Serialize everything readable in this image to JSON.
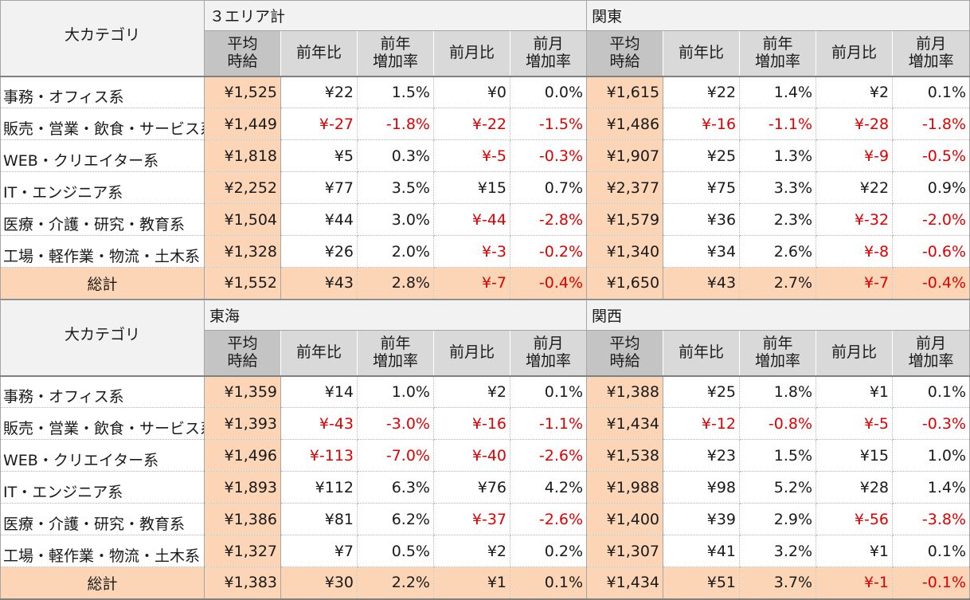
{
  "header": {
    "category_label": "大カテゴリ",
    "columns": [
      "平均\n時給",
      "前年比",
      "前年\n増加率",
      "前月比",
      "前月\n増加率"
    ]
  },
  "categories": [
    "事務・オフィス系",
    "販売・営業・飲食・サービス系",
    "WEB・クリエイター系",
    "IT・エンジニア系",
    "医療・介護・研究・教育系",
    "工場・軽作業・物流・土木系"
  ],
  "total_label": "総計",
  "colors": {
    "highlight": "#fbd5b5",
    "negative": "#e00000",
    "header_bg": "#f2f2f2",
    "subheader_bg": "#d9d9d9"
  },
  "tables": [
    {
      "regions": [
        "３エリア計",
        "関東"
      ],
      "rows": [
        [
          "¥1,525",
          "¥22",
          "1.5%",
          "¥0",
          "0.0%",
          "¥1,615",
          "¥22",
          "1.4%",
          "¥2",
          "0.1%"
        ],
        [
          "¥1,449",
          "¥-27",
          "-1.8%",
          "¥-22",
          "-1.5%",
          "¥1,486",
          "¥-16",
          "-1.1%",
          "¥-28",
          "-1.8%"
        ],
        [
          "¥1,818",
          "¥5",
          "0.3%",
          "¥-5",
          "-0.3%",
          "¥1,907",
          "¥25",
          "1.3%",
          "¥-9",
          "-0.5%"
        ],
        [
          "¥2,252",
          "¥77",
          "3.5%",
          "¥15",
          "0.7%",
          "¥2,377",
          "¥75",
          "3.3%",
          "¥22",
          "0.9%"
        ],
        [
          "¥1,504",
          "¥44",
          "3.0%",
          "¥-44",
          "-2.8%",
          "¥1,579",
          "¥36",
          "2.3%",
          "¥-32",
          "-2.0%"
        ],
        [
          "¥1,328",
          "¥26",
          "2.0%",
          "¥-3",
          "-0.2%",
          "¥1,340",
          "¥34",
          "2.6%",
          "¥-8",
          "-0.6%"
        ]
      ],
      "total": [
        "¥1,552",
        "¥43",
        "2.8%",
        "¥-7",
        "-0.4%",
        "¥1,650",
        "¥43",
        "2.7%",
        "¥-7",
        "-0.4%"
      ]
    },
    {
      "regions": [
        "東海",
        "関西"
      ],
      "rows": [
        [
          "¥1,359",
          "¥14",
          "1.0%",
          "¥2",
          "0.1%",
          "¥1,388",
          "¥25",
          "1.8%",
          "¥1",
          "0.1%"
        ],
        [
          "¥1,393",
          "¥-43",
          "-3.0%",
          "¥-16",
          "-1.1%",
          "¥1,434",
          "¥-12",
          "-0.8%",
          "¥-5",
          "-0.3%"
        ],
        [
          "¥1,496",
          "¥-113",
          "-7.0%",
          "¥-40",
          "-2.6%",
          "¥1,538",
          "¥23",
          "1.5%",
          "¥15",
          "1.0%"
        ],
        [
          "¥1,893",
          "¥112",
          "6.3%",
          "¥76",
          "4.2%",
          "¥1,988",
          "¥98",
          "5.2%",
          "¥28",
          "1.4%"
        ],
        [
          "¥1,386",
          "¥81",
          "6.2%",
          "¥-37",
          "-2.6%",
          "¥1,400",
          "¥39",
          "2.9%",
          "¥-56",
          "-3.8%"
        ],
        [
          "¥1,327",
          "¥7",
          "0.5%",
          "¥2",
          "0.2%",
          "¥1,307",
          "¥41",
          "3.2%",
          "¥1",
          "0.1%"
        ]
      ],
      "total": [
        "¥1,383",
        "¥30",
        "2.2%",
        "¥1",
        "0.1%",
        "¥1,434",
        "¥51",
        "3.7%",
        "¥-1",
        "-0.1%"
      ]
    }
  ]
}
